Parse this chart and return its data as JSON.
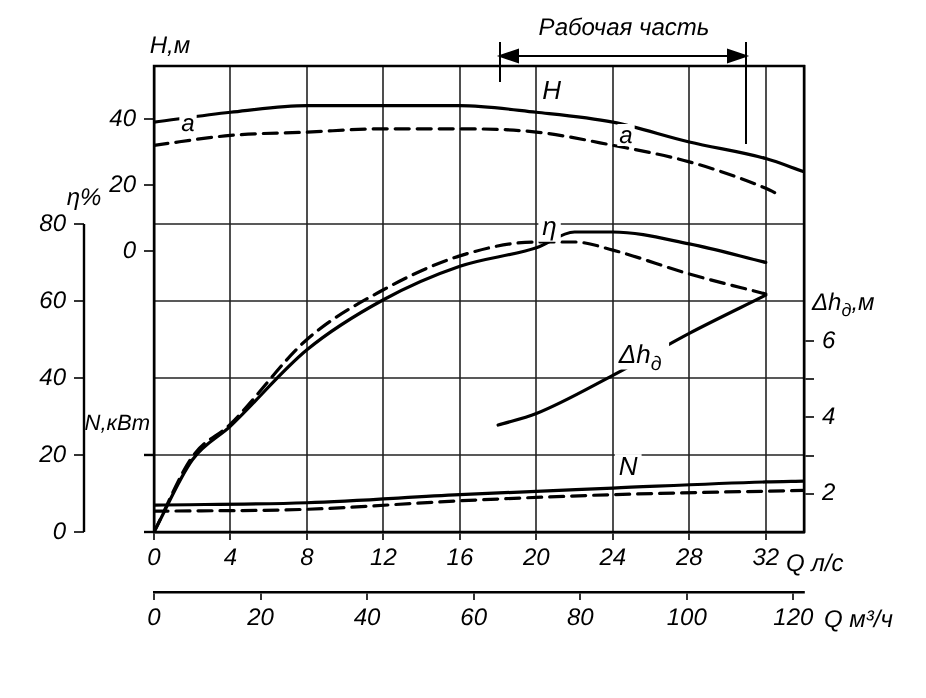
{
  "chart_data": {
    "type": "line",
    "xlabel": "Q л/с",
    "x2label": "Q м³/ч",
    "ylabel": "η%",
    "y2label": "Δh$_{д}$,м",
    "y3label": "Н,м",
    "xlim": [
      0,
      34
    ],
    "xticks": [
      0,
      4,
      8,
      12,
      16,
      20,
      24,
      28,
      32
    ],
    "x2lim": [
      0,
      122
    ],
    "x2ticks": [
      0,
      20,
      40,
      60,
      80,
      100,
      120
    ],
    "ylim": [
      0,
      121
    ],
    "yticks": [
      0,
      20,
      40,
      60,
      80
    ],
    "y2lim": [
      1,
      13.2
    ],
    "y2ticks": [
      2,
      {
        "value": 3,
        "label": null
      },
      4,
      {
        "value": 5,
        "label": null
      },
      6
    ],
    "y3lim": [
      -85,
      56
    ],
    "y3ticks": [
      0,
      20,
      40
    ],
    "grid": true,
    "marker": "none",
    "series": [
      {
        "name": "H",
        "color": "#000000",
        "axis": "y3",
        "line_style": "solid",
        "x": [
          0,
          4,
          8,
          12,
          16,
          20,
          24,
          28,
          32,
          34
        ],
        "values": [
          39,
          42,
          44,
          44,
          44,
          42,
          39,
          33,
          28,
          24
        ]
      },
      {
        "color": "#000000",
        "axis": "y3",
        "line_style": "dashed",
        "x": [
          0,
          4,
          8,
          12,
          16,
          20,
          24,
          28,
          32,
          32.7
        ],
        "values": [
          32,
          35,
          36,
          37,
          37,
          36,
          32,
          27,
          19,
          17
        ]
      },
      {
        "name": "η",
        "color": "#000000",
        "axis": "y",
        "line_style": "solid",
        "x": [
          0,
          2,
          4,
          8,
          12,
          16,
          20,
          22,
          24,
          28,
          32
        ],
        "values": [
          0,
          18.7,
          27.5,
          47.3,
          60.3,
          69,
          73.8,
          77.9,
          77.9,
          74.8,
          70
        ]
      },
      {
        "color": "#000000",
        "axis": "y",
        "line_style": "dashed",
        "x": [
          0,
          2,
          4,
          8,
          12,
          16,
          20,
          22,
          24,
          28,
          32
        ],
        "values": [
          0,
          19.5,
          28,
          50,
          62.9,
          71.7,
          75.3,
          75.3,
          73.2,
          67,
          61.8
        ]
      },
      {
        "name": "Δh$_{д}$",
        "color": "#000000",
        "axis": "y2",
        "line_style": "solid",
        "x": [
          18,
          20,
          24,
          28,
          32
        ],
        "values": [
          3.8,
          4.1,
          5.1,
          6.2,
          7.2
        ]
      },
      {
        "name": "N",
        "color": "#000000",
        "axis": "y",
        "line_style": "solid",
        "x": [
          0,
          8,
          16,
          24,
          32,
          34
        ],
        "values": [
          7,
          7.6,
          9.7,
          11.4,
          13,
          13.2
        ]
      },
      {
        "color": "#000000",
        "axis": "y",
        "line_style": "dashed",
        "x": [
          0,
          8,
          16,
          24,
          34
        ],
        "values": [
          5.4,
          5.9,
          8.1,
          9.7,
          10.8
        ]
      }
    ],
    "annotations": [
      "N,кВт",
      "Рабочая часть",
      "а",
      "а"
    ]
  }
}
